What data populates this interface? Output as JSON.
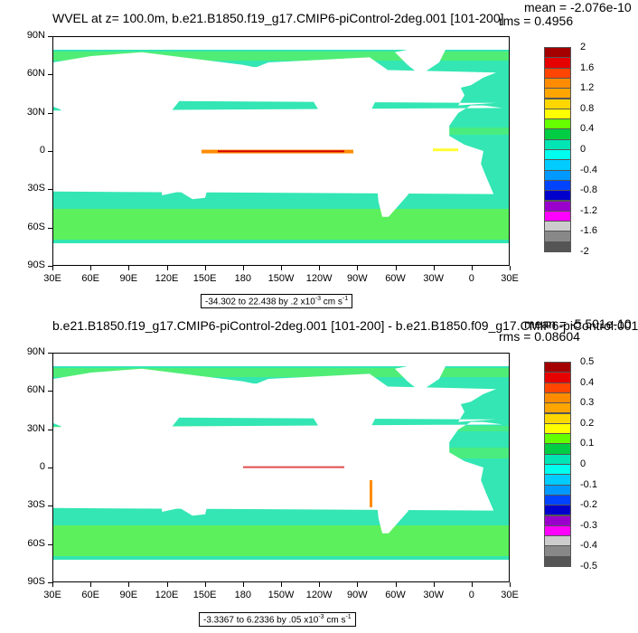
{
  "panels": [
    {
      "title": "WVEL at z= 100.0m, b.e21.B1850.f19_g17.CMIP6-piControl-2deg.001 [101-200]",
      "mean_text": "mean = -2.076e-10",
      "rms_text": "rms = 0.4956",
      "range_text": "-34.302 to 22.438 by .2 x10",
      "range_exp": "-3",
      "range_units": " cm s",
      "range_units_exp": "-1",
      "colorbar_labels": [
        "2",
        "1.6",
        "1.2",
        "0.8",
        "0.4",
        "0",
        "-0.4",
        "-0.8",
        "-1.2",
        "-1.6",
        "-2"
      ]
    },
    {
      "title": "b.e21.B1850.f19_g17.CMIP6-piControl-2deg.001 [101-200] - b.e21.B1850.f09_g17.CMIP6-piControl.001",
      "mean_text": "mean = -5.501e-10",
      "rms_text": "rms = 0.08604",
      "range_text": "-3.3367 to 6.2336 by .05 x10",
      "range_exp": "-3",
      "range_units": " cm s",
      "range_units_exp": "-1",
      "colorbar_labels": [
        "0.5",
        "0.4",
        "0.3",
        "0.2",
        "0.1",
        "0",
        "-0.1",
        "-0.2",
        "-0.3",
        "-0.4",
        "-0.5"
      ]
    }
  ],
  "lat_labels": [
    "90N",
    "60N",
    "30N",
    "0",
    "30S",
    "60S",
    "90S"
  ],
  "lon_labels": [
    "30E",
    "60E",
    "90E",
    "120E",
    "150E",
    "180",
    "150W",
    "120W",
    "90W",
    "60W",
    "30W",
    "0",
    "30E"
  ],
  "colorbar_colors": [
    "#a50000",
    "#e60000",
    "#ff4500",
    "#ff8c00",
    "#ffa500",
    "#ffd700",
    "#ffff00",
    "#66ff00",
    "#00cc44",
    "#00e5b3",
    "#00ffee",
    "#00ccff",
    "#0099ff",
    "#0044ff",
    "#0000cc",
    "#9900cc",
    "#ff00ff",
    "#cccccc",
    "#888888",
    "#555555"
  ],
  "map_colors": {
    "ocean": "#33e6b3",
    "ocean_alt": "#5cf05c",
    "land": "#ffffff",
    "equator_red": "#d40000",
    "equator_orange": "#ff8c00",
    "equator_yellow": "#ffff33"
  }
}
